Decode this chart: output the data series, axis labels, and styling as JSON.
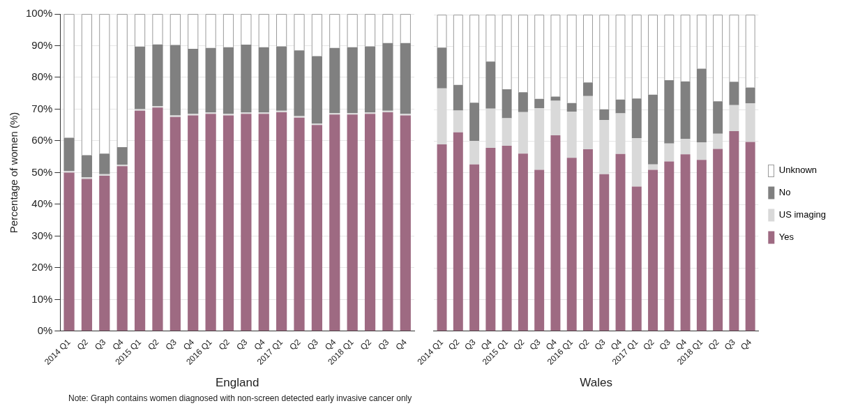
{
  "chart_data": [
    {
      "type": "bar",
      "stacked": true,
      "xlabel": "England",
      "ylabel": "Percentage of women (%)",
      "grid": "y",
      "legend": false,
      "categories": [
        "2014 Q1",
        "Q2",
        "Q3",
        "Q4",
        "2015 Q1",
        "Q2",
        "Q3",
        "Q4",
        "2016 Q1",
        "Q2",
        "Q3",
        "Q4",
        "2017 Q1",
        "Q2",
        "Q3",
        "Q4",
        "2018 Q1",
        "Q2",
        "Q3",
        "Q4"
      ],
      "ylim": [
        0,
        100
      ],
      "yticks": [
        {
          "value": 0,
          "label": "0%"
        },
        {
          "value": 10,
          "label": "10%"
        },
        {
          "value": 20,
          "label": "20%"
        },
        {
          "value": 30,
          "label": "30%"
        },
        {
          "value": 40,
          "label": "40%"
        },
        {
          "value": 50,
          "label": "50%"
        },
        {
          "value": 60,
          "label": "60%"
        },
        {
          "value": 70,
          "label": "70%"
        },
        {
          "value": 80,
          "label": "80%"
        },
        {
          "value": 90,
          "label": "90%"
        },
        {
          "value": 100,
          "label": "100%"
        }
      ],
      "series": [
        {
          "color": "#9e6a82",
          "values": [
            50,
            48,
            49,
            52,
            69.5,
            70.5,
            67.5,
            68,
            68.5,
            68,
            68.5,
            68.5,
            69,
            67.3,
            65,
            68.3,
            68.3,
            68.5,
            69,
            68
          ]
        },
        {
          "color": "#d9d9d9",
          "values": [
            0.5,
            0.5,
            0.5,
            0.5,
            0.5,
            0.5,
            0.5,
            0.5,
            0.5,
            0.5,
            0.5,
            0.5,
            0.5,
            0.5,
            0.5,
            0.5,
            0.5,
            0.5,
            0.5,
            0.5
          ]
        },
        {
          "color": "#808080",
          "values": [
            10.5,
            7,
            6.5,
            5.5,
            19.7,
            19.4,
            22.2,
            20.5,
            20.3,
            21,
            21.3,
            20.5,
            20.3,
            20.7,
            21.2,
            20.5,
            20.7,
            20.8,
            21.3,
            22.3
          ]
        },
        {
          "color": "#ffffff",
          "values": [
            39,
            44.5,
            44,
            42,
            10.3,
            9.6,
            9.8,
            11,
            10.7,
            10.5,
            9.7,
            10.5,
            10.2,
            11.5,
            13.3,
            10.7,
            10.5,
            10.2,
            9.2,
            9.2
          ]
        }
      ],
      "annotations": [
        "Note: Graph contains women diagnosed with non-screen detected early invasive cancer only"
      ]
    },
    {
      "type": "bar",
      "stacked": true,
      "xlabel": "Wales",
      "grid": "y",
      "legend": "right",
      "tick_labels": "x",
      "categories": [
        "2014 Q1",
        "Q2",
        "Q3",
        "Q4",
        "2015 Q1",
        "Q2",
        "Q3",
        "Q4",
        "2016 Q1",
        "Q2",
        "Q3",
        "Q4",
        "2017 Q1",
        "Q2",
        "Q3",
        "Q4",
        "2018 Q1",
        "Q2",
        "Q3",
        "Q4"
      ],
      "ylim": [
        0,
        100
      ],
      "yticks": [
        0,
        10,
        20,
        30,
        40,
        50,
        60,
        70,
        80,
        90,
        100
      ],
      "series": [
        {
          "name": "Yes",
          "color": "#9e6a82",
          "values": [
            59,
            62.8,
            52.7,
            57.9,
            58.6,
            56.1,
            51,
            61.9,
            54.8,
            57.5,
            49.6,
            56,
            45.7,
            51,
            53.6,
            55.9,
            54.1,
            57.6,
            63.2,
            59.8
          ]
        },
        {
          "name": "US imaging",
          "color": "#d9d9d9",
          "values": [
            17.7,
            6.9,
            7.4,
            12.4,
            8.7,
            13.1,
            19.4,
            10.9,
            14.5,
            16.8,
            17.1,
            12.8,
            15.3,
            1.7,
            5.7,
            4.9,
            5.5,
            4.8,
            8.2,
            12.2
          ]
        },
        {
          "name": "No",
          "color": "#808080",
          "values": [
            12.9,
            8.1,
            12.1,
            14.9,
            9.1,
            6.3,
            3,
            1.3,
            2.8,
            4.3,
            3.4,
            4.4,
            12.5,
            22,
            20,
            18.1,
            23.3,
            10.2,
            7.4,
            5
          ]
        },
        {
          "name": "Unknown",
          "color": "#ffffff",
          "values": [
            10.4,
            22.2,
            27.8,
            14.8,
            23.6,
            24.5,
            26.6,
            25.9,
            27.9,
            21.4,
            29.9,
            26.8,
            26.5,
            25.3,
            20.7,
            21.1,
            17.1,
            27.4,
            21.2,
            23
          ]
        }
      ]
    }
  ]
}
